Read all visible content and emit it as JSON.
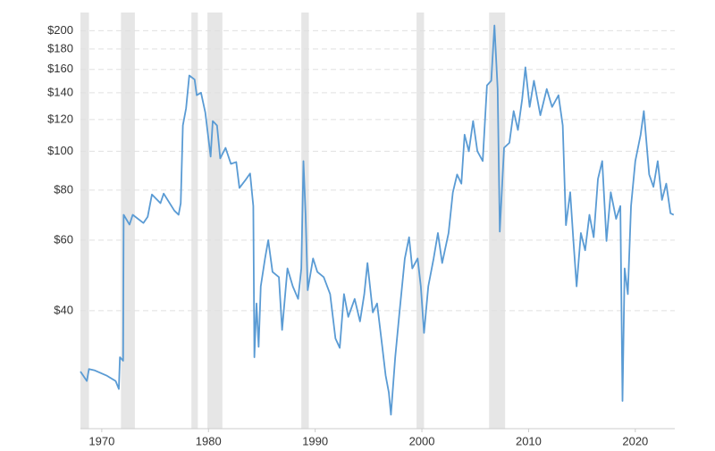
{
  "chart_data": {
    "type": "line",
    "log_scale": true,
    "grid": true,
    "xlim": [
      1968,
      2023.7
    ],
    "ylim": [
      20.3,
      222
    ],
    "xticks": [
      1970,
      1980,
      1990,
      2000,
      2010,
      2020
    ],
    "yticks": [
      {
        "value": 40,
        "label": "$40"
      },
      {
        "value": 60,
        "label": "$60"
      },
      {
        "value": 80,
        "label": "$80"
      },
      {
        "value": 100,
        "label": "$100"
      },
      {
        "value": 120,
        "label": "$120"
      },
      {
        "value": 140,
        "label": "$140"
      },
      {
        "value": 160,
        "label": "$160"
      },
      {
        "value": 180,
        "label": "$180"
      },
      {
        "value": 200,
        "label": "$200"
      }
    ],
    "shaded_ranges": [
      [
        1968.0,
        1968.8
      ],
      [
        1971.8,
        1973.1
      ],
      [
        1978.4,
        1979.0
      ],
      [
        1979.9,
        1981.3
      ],
      [
        1988.7,
        1989.4
      ],
      [
        1999.5,
        2000.2
      ],
      [
        2006.3,
        2007.8
      ]
    ],
    "shade_color": "#e6e6e6",
    "series": [
      {
        "color": "#5a9bd4",
        "x": [
          1968.0,
          1968.6,
          1968.8,
          1969.3,
          1970.5,
          1971.3,
          1971.6,
          1971.7,
          1972.0,
          1972.05,
          1972.6,
          1972.9,
          1973.9,
          1974.3,
          1974.7,
          1975.5,
          1975.8,
          1976.8,
          1977.2,
          1977.4,
          1977.6,
          1977.9,
          1978.2,
          1978.7,
          1978.9,
          1979.3,
          1979.7,
          1980.2,
          1980.4,
          1980.8,
          1981.1,
          1981.6,
          1982.1,
          1982.6,
          1982.9,
          1983.5,
          1983.9,
          1984.2,
          1984.3,
          1984.5,
          1984.7,
          1984.9,
          1985.3,
          1985.6,
          1986.0,
          1986.6,
          1986.9,
          1987.4,
          1987.9,
          1988.4,
          1988.7,
          1988.9,
          1989.1,
          1989.3,
          1989.8,
          1990.2,
          1990.8,
          1991.4,
          1991.9,
          1992.3,
          1992.7,
          1993.1,
          1993.7,
          1994.2,
          1994.6,
          1994.9,
          1995.4,
          1995.8,
          1996.3,
          1996.6,
          1996.9,
          1997.1,
          1997.5,
          1997.9,
          1998.4,
          1998.8,
          1999.1,
          1999.6,
          1999.9,
          2000.2,
          2000.6,
          2001.1,
          2001.5,
          2001.9,
          2002.5,
          2002.9,
          2003.3,
          2003.7,
          2004.0,
          2004.4,
          2004.8,
          2005.2,
          2005.7,
          2006.1,
          2006.5,
          2006.8,
          2007.1,
          2007.3,
          2007.7,
          2008.2,
          2008.6,
          2009.0,
          2009.4,
          2009.7,
          2010.1,
          2010.5,
          2011.1,
          2011.7,
          2012.2,
          2012.8,
          2013.2,
          2013.5,
          2013.9,
          2014.2,
          2014.5,
          2014.9,
          2015.3,
          2015.7,
          2016.1,
          2016.5,
          2016.9,
          2017.3,
          2017.7,
          2018.2,
          2018.6,
          2018.8,
          2019.0,
          2019.3,
          2019.6,
          2020.0,
          2020.5,
          2020.8,
          2021.3,
          2021.7,
          2022.1,
          2022.5,
          2022.9,
          2023.3,
          2023.6
        ],
        "values": [
          28.2,
          26.7,
          28.6,
          28.4,
          27.5,
          26.7,
          25.5,
          30.6,
          30.0,
          69.4,
          65.6,
          69.4,
          66.2,
          68.6,
          78.0,
          74.2,
          78.4,
          71.1,
          69.4,
          74.2,
          116,
          128,
          154.6,
          151,
          138,
          140,
          125,
          97,
          119,
          116,
          96,
          102,
          93,
          94,
          81,
          85,
          88,
          73,
          30.6,
          41.7,
          32.5,
          46,
          54,
          60,
          50,
          48.5,
          35.8,
          51,
          46,
          42.8,
          51,
          94.5,
          69.4,
          45,
          54,
          50,
          48.5,
          44,
          34.1,
          32.3,
          44,
          38.6,
          42.8,
          37.6,
          44,
          52.6,
          39.6,
          41.7,
          32.3,
          27.6,
          25.0,
          22.0,
          30.6,
          39.6,
          54,
          61,
          51,
          54,
          46,
          35.2,
          46,
          54,
          62.5,
          52.6,
          62.5,
          78.9,
          87.5,
          83,
          110,
          100,
          119,
          100,
          94.5,
          146,
          150,
          206,
          143,
          63,
          102,
          105,
          126,
          113,
          135,
          162,
          129,
          150,
          123,
          143,
          129,
          138,
          116,
          65.4,
          79,
          59.7,
          46,
          62.5,
          56.6,
          69.4,
          61,
          85.3,
          94.5,
          59.7,
          79,
          67.8,
          73,
          23.8,
          51,
          44,
          73,
          94.5,
          110,
          126,
          87.5,
          81.5,
          94.5,
          75.6,
          83,
          70,
          69.4
        ]
      }
    ]
  }
}
